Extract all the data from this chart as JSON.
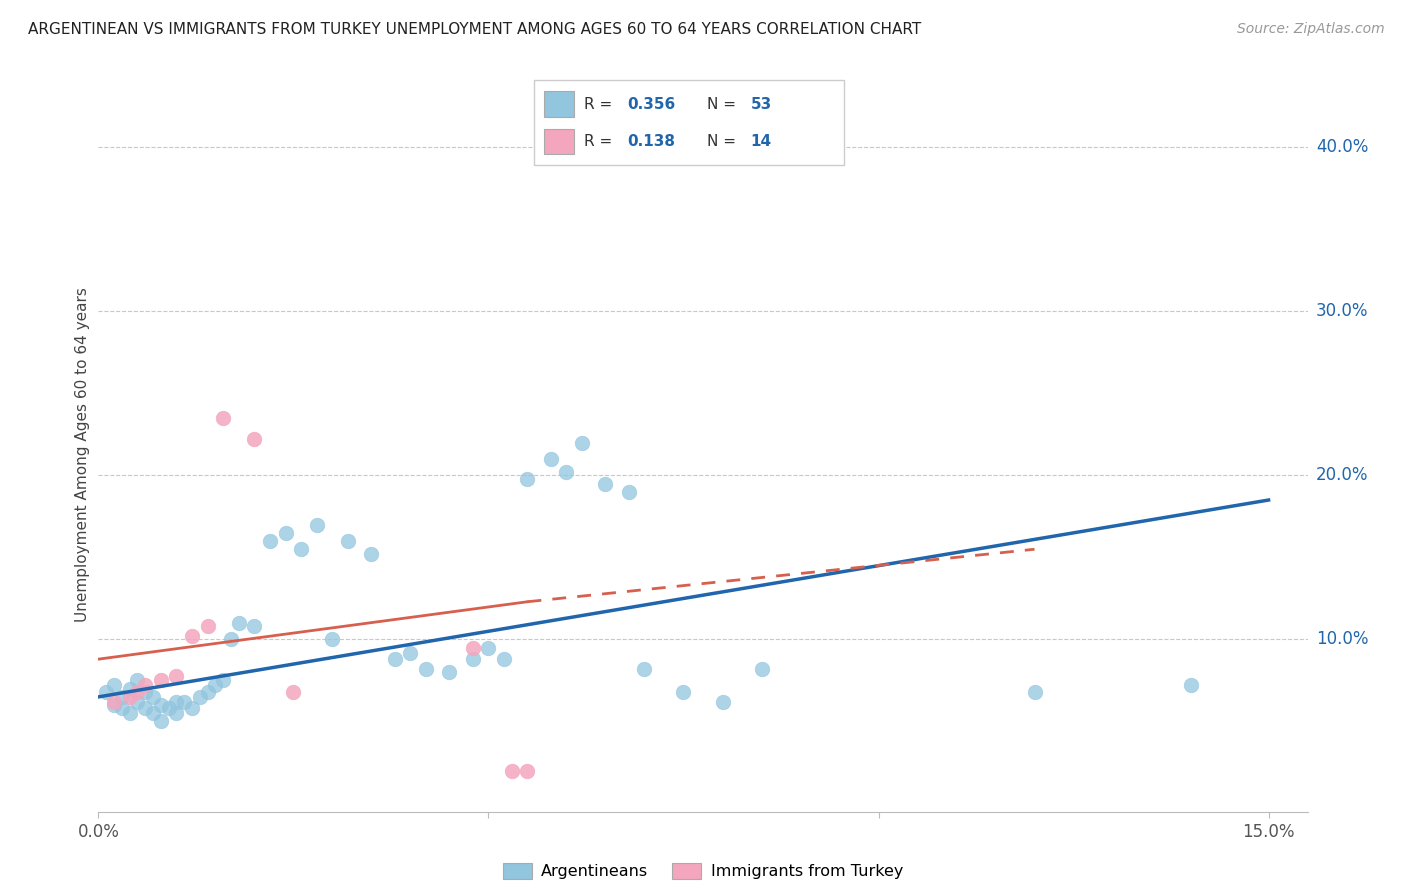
{
  "title": "ARGENTINEAN VS IMMIGRANTS FROM TURKEY UNEMPLOYMENT AMONG AGES 60 TO 64 YEARS CORRELATION CHART",
  "source": "Source: ZipAtlas.com",
  "ylabel": "Unemployment Among Ages 60 to 64 years",
  "right_ytick_labels": [
    "10.0%",
    "20.0%",
    "30.0%",
    "40.0%"
  ],
  "right_ytick_vals": [
    0.1,
    0.2,
    0.3,
    0.4
  ],
  "xlim": [
    0.0,
    0.155
  ],
  "ylim": [
    -0.005,
    0.43
  ],
  "blue_color": "#92c5de",
  "pink_color": "#f4a6be",
  "blue_line_color": "#2166ac",
  "pink_line_color": "#d6604d",
  "legend_R_blue": "0.356",
  "legend_N_blue": "53",
  "legend_R_pink": "0.138",
  "legend_N_pink": "14",
  "arg_x": [
    0.001,
    0.002,
    0.002,
    0.003,
    0.003,
    0.004,
    0.004,
    0.005,
    0.005,
    0.006,
    0.006,
    0.007,
    0.007,
    0.008,
    0.008,
    0.009,
    0.01,
    0.01,
    0.011,
    0.012,
    0.013,
    0.014,
    0.015,
    0.016,
    0.017,
    0.018,
    0.02,
    0.022,
    0.024,
    0.026,
    0.028,
    0.03,
    0.032,
    0.035,
    0.038,
    0.04,
    0.042,
    0.045,
    0.048,
    0.05,
    0.052,
    0.055,
    0.058,
    0.06,
    0.062,
    0.065,
    0.068,
    0.07,
    0.075,
    0.08,
    0.085,
    0.12,
    0.14
  ],
  "arg_y": [
    0.068,
    0.072,
    0.06,
    0.065,
    0.058,
    0.07,
    0.055,
    0.075,
    0.062,
    0.068,
    0.058,
    0.065,
    0.055,
    0.06,
    0.05,
    0.058,
    0.055,
    0.062,
    0.062,
    0.058,
    0.065,
    0.068,
    0.072,
    0.075,
    0.1,
    0.11,
    0.108,
    0.16,
    0.165,
    0.155,
    0.17,
    0.1,
    0.16,
    0.152,
    0.088,
    0.092,
    0.082,
    0.08,
    0.088,
    0.095,
    0.088,
    0.198,
    0.21,
    0.202,
    0.22,
    0.195,
    0.19,
    0.082,
    0.068,
    0.062,
    0.082,
    0.068,
    0.072
  ],
  "turk_x": [
    0.002,
    0.004,
    0.005,
    0.006,
    0.008,
    0.01,
    0.012,
    0.014,
    0.016,
    0.02,
    0.025,
    0.048,
    0.053,
    0.055
  ],
  "turk_y": [
    0.062,
    0.065,
    0.068,
    0.072,
    0.075,
    0.078,
    0.102,
    0.108,
    0.235,
    0.222,
    0.068,
    0.095,
    0.02,
    0.02
  ],
  "blue_trend": [
    0.0,
    0.15,
    0.065,
    0.185
  ],
  "pink_trend_solid": [
    0.0,
    0.055,
    0.088,
    0.123
  ],
  "pink_trend_dash": [
    0.055,
    0.12,
    0.123,
    0.155
  ]
}
